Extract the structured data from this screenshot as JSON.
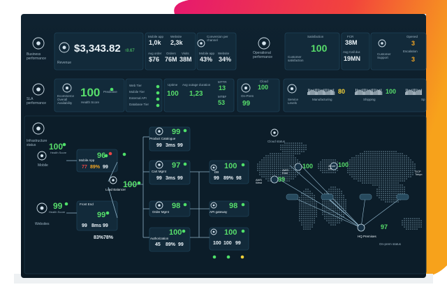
{
  "business": {
    "title": "Business performance",
    "revenue_label": "Revenue",
    "revenue": "$3,343.82",
    "revenue_change": "↑8.67",
    "mobile_app_label": "Mobile app",
    "mobile_app_value": "1,0k",
    "avg_order_label": "Avg order",
    "avg_order_value": "$76",
    "website_label": "Website",
    "website_value": "2,3k",
    "orders_label": "Orders",
    "orders_value": "76M",
    "visits_label": "Visits",
    "visits_value": "38M",
    "conversion_title": "Conversion per channel",
    "conversion_mobile_label": "Mobile app",
    "conversion_mobile_value": "43%",
    "conversion_website_label": "Website",
    "conversion_website_value": "34%"
  },
  "operational": {
    "title": "Operational performance",
    "satisfaction_label": "Satisfaction",
    "satisfaction_value": "100",
    "satisfaction_caption": "Customer satisfaction",
    "fcr_label": "FCR",
    "fcr_value": "38M",
    "avg_call_label": "Avg Call dur.",
    "avg_call_value": "19MN",
    "support_label": "Customer Support",
    "opened_label": "Opened",
    "opened_value": "3",
    "escalation_label": "Escalation",
    "escalation_value": "3"
  },
  "sla": {
    "title": "SLA performance",
    "availability_label": "Ecommerce Overall Availability",
    "health_value": "100",
    "predictive_label": "Predictive",
    "health_label": "Health Score",
    "tiers": [
      "Web Tier",
      "Mobile Tier",
      "External API",
      "Database Tier"
    ],
    "uptime_label": "Uptime",
    "uptime_value": "100",
    "outage_label": "Avg outage duration",
    "outage_value": "1,23",
    "mttr_label": "MTTR",
    "mttr_value": "13",
    "mtbf_label": "MTBF",
    "mtbf_value": "53",
    "cloud_label": "Cloud",
    "cloud_value": "100",
    "onprem_label": "On-Prem",
    "onprem_value": "99",
    "service_levels_label": "Service Levels",
    "manufacturing_label": "Manufacturing",
    "manufacturing_value": "80",
    "shipping_label": "Shipping",
    "shipping_value": "100",
    "next_label": "Sp"
  },
  "infrastructure": {
    "title": "Infrastructure status",
    "mobile": {
      "label": "Mobile",
      "score": "100",
      "caption": "Health Score"
    },
    "websites": {
      "label": "Websites",
      "score": "99",
      "caption": "Health Score"
    },
    "mobile_app": {
      "label": "Mobile App",
      "score": "96",
      "metrics": [
        "77",
        "89%",
        "99"
      ]
    },
    "front_end": {
      "label": "Front End",
      "score": "99",
      "metrics": [
        "99",
        "8ms",
        "99"
      ],
      "extra": [
        "83%",
        "78%"
      ]
    },
    "load_balancer": {
      "label": "Load Balancer",
      "score": "100"
    },
    "product_catalogue": {
      "label": "Product Catalogue",
      "score": "99",
      "metrics": [
        "99",
        "3ms",
        "99"
      ]
    },
    "cart_mgmt": {
      "label": "Cart Mgmt",
      "score": "97",
      "metrics": [
        "99",
        "3ms",
        "99"
      ]
    },
    "order_mgmt": {
      "label": "Order Mgmt",
      "score": "98"
    },
    "authorization": {
      "label": "Authorization",
      "score": "100",
      "metrics": [
        "45",
        "89%",
        "99"
      ]
    },
    "db": {
      "label": "DB",
      "score": "100",
      "metrics": [
        "99",
        "89%",
        "98"
      ]
    },
    "api_gateway": {
      "label": "API gateway",
      "score": "98"
    },
    "messaging": {
      "score": "100",
      "metrics": [
        "100",
        "100",
        "99"
      ]
    },
    "cloud_status": "Cloud status",
    "aws_east": {
      "label": "AWS East",
      "score": "100"
    },
    "aws_west": {
      "label": "AWS West",
      "score": "99"
    },
    "azure_uk": {
      "label": "Azure UK",
      "score": "100"
    },
    "gcp_tokyo": {
      "label": "GCP Tokyo"
    },
    "hq": {
      "label": "HQ Premises",
      "score": "97"
    },
    "onprem_status": "On-prem status"
  }
}
